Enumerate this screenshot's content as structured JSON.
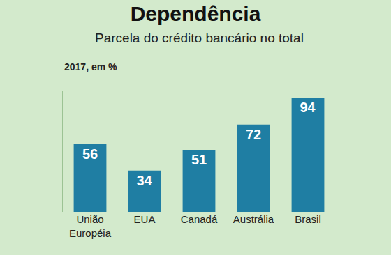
{
  "chart_data": {
    "type": "bar",
    "title": "Dependência",
    "subtitle": "Parcela do crédito bancário no total",
    "annotations": [
      "2017, em %"
    ],
    "categories": [
      "União Européia",
      "EUA",
      "Canadá",
      "Austrália",
      "Brasil"
    ],
    "values": [
      56,
      34,
      51,
      72,
      94
    ],
    "color": "#1f7ea3",
    "ylim": [
      0,
      100
    ],
    "grid": false,
    "data_labels": true,
    "tick_labels": "x"
  }
}
